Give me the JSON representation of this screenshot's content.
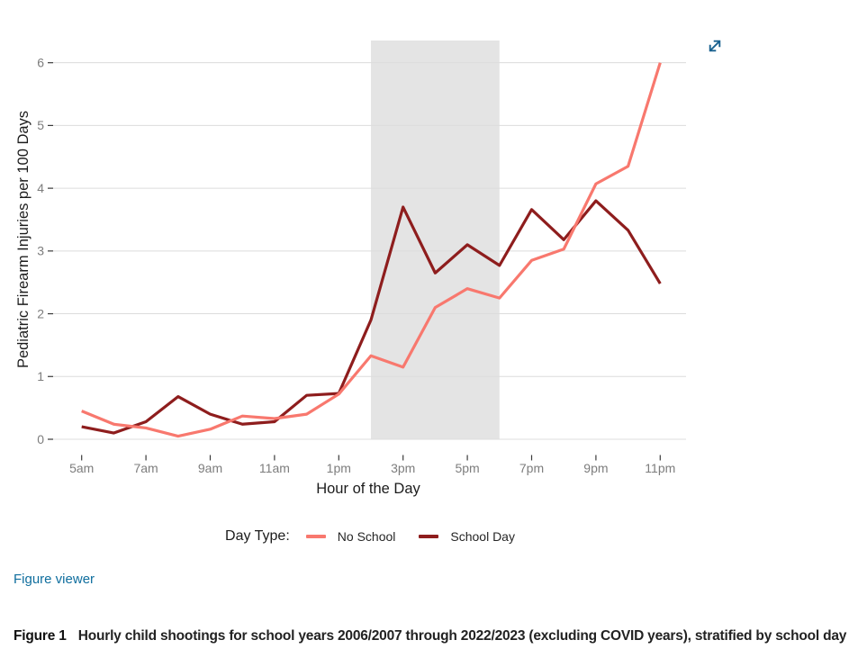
{
  "figure_viewer": {
    "label": "Figure viewer",
    "color": "#0F6E9E"
  },
  "caption": {
    "label": "Figure 1",
    "text": "Hourly child shootings for school years 2006/2007 through 2022/2023 (excluding COVID years), stratified by school day"
  },
  "legend": {
    "title": "Day Type:",
    "items": [
      {
        "label": "No School",
        "color": "#F8786E"
      },
      {
        "label": "School Day",
        "color": "#8E1D1D"
      }
    ]
  },
  "expand_icon_color": "#19618F",
  "chart_data": {
    "type": "line",
    "xlabel": "Hour of the Day",
    "ylabel": "Pediatric Firearm Injuries per 100 Days",
    "x_hours": [
      5,
      6,
      7,
      8,
      9,
      10,
      11,
      12,
      13,
      14,
      15,
      16,
      17,
      18,
      19,
      20,
      21,
      22,
      23
    ],
    "x_tick_hours": [
      5,
      7,
      9,
      11,
      13,
      15,
      17,
      19,
      21,
      23
    ],
    "x_tick_labels": [
      "5am",
      "7am",
      "9am",
      "11am",
      "1pm",
      "3pm",
      "5pm",
      "7pm",
      "9pm",
      "11pm"
    ],
    "y_ticks": [
      0,
      1,
      2,
      3,
      4,
      5,
      6
    ],
    "ylim": [
      0,
      6.35
    ],
    "grid": "horizontal",
    "legend_position": "bottom",
    "shaded_region": {
      "x_start_hour": 14,
      "x_end_hour": 18,
      "color": "#E4E4E4"
    },
    "series": [
      {
        "name": "No School",
        "color": "#F8786E",
        "values": [
          0.45,
          0.24,
          0.18,
          0.05,
          0.16,
          0.37,
          0.33,
          0.4,
          0.72,
          1.33,
          1.15,
          2.1,
          2.4,
          2.25,
          2.85,
          3.03,
          4.07,
          4.35,
          6.0
        ]
      },
      {
        "name": "School Day",
        "color": "#8E1D1D",
        "values": [
          0.2,
          0.1,
          0.28,
          0.68,
          0.4,
          0.24,
          0.28,
          0.7,
          0.73,
          1.9,
          3.7,
          2.65,
          3.1,
          2.77,
          3.66,
          3.18,
          3.8,
          3.33,
          2.48
        ]
      }
    ]
  }
}
